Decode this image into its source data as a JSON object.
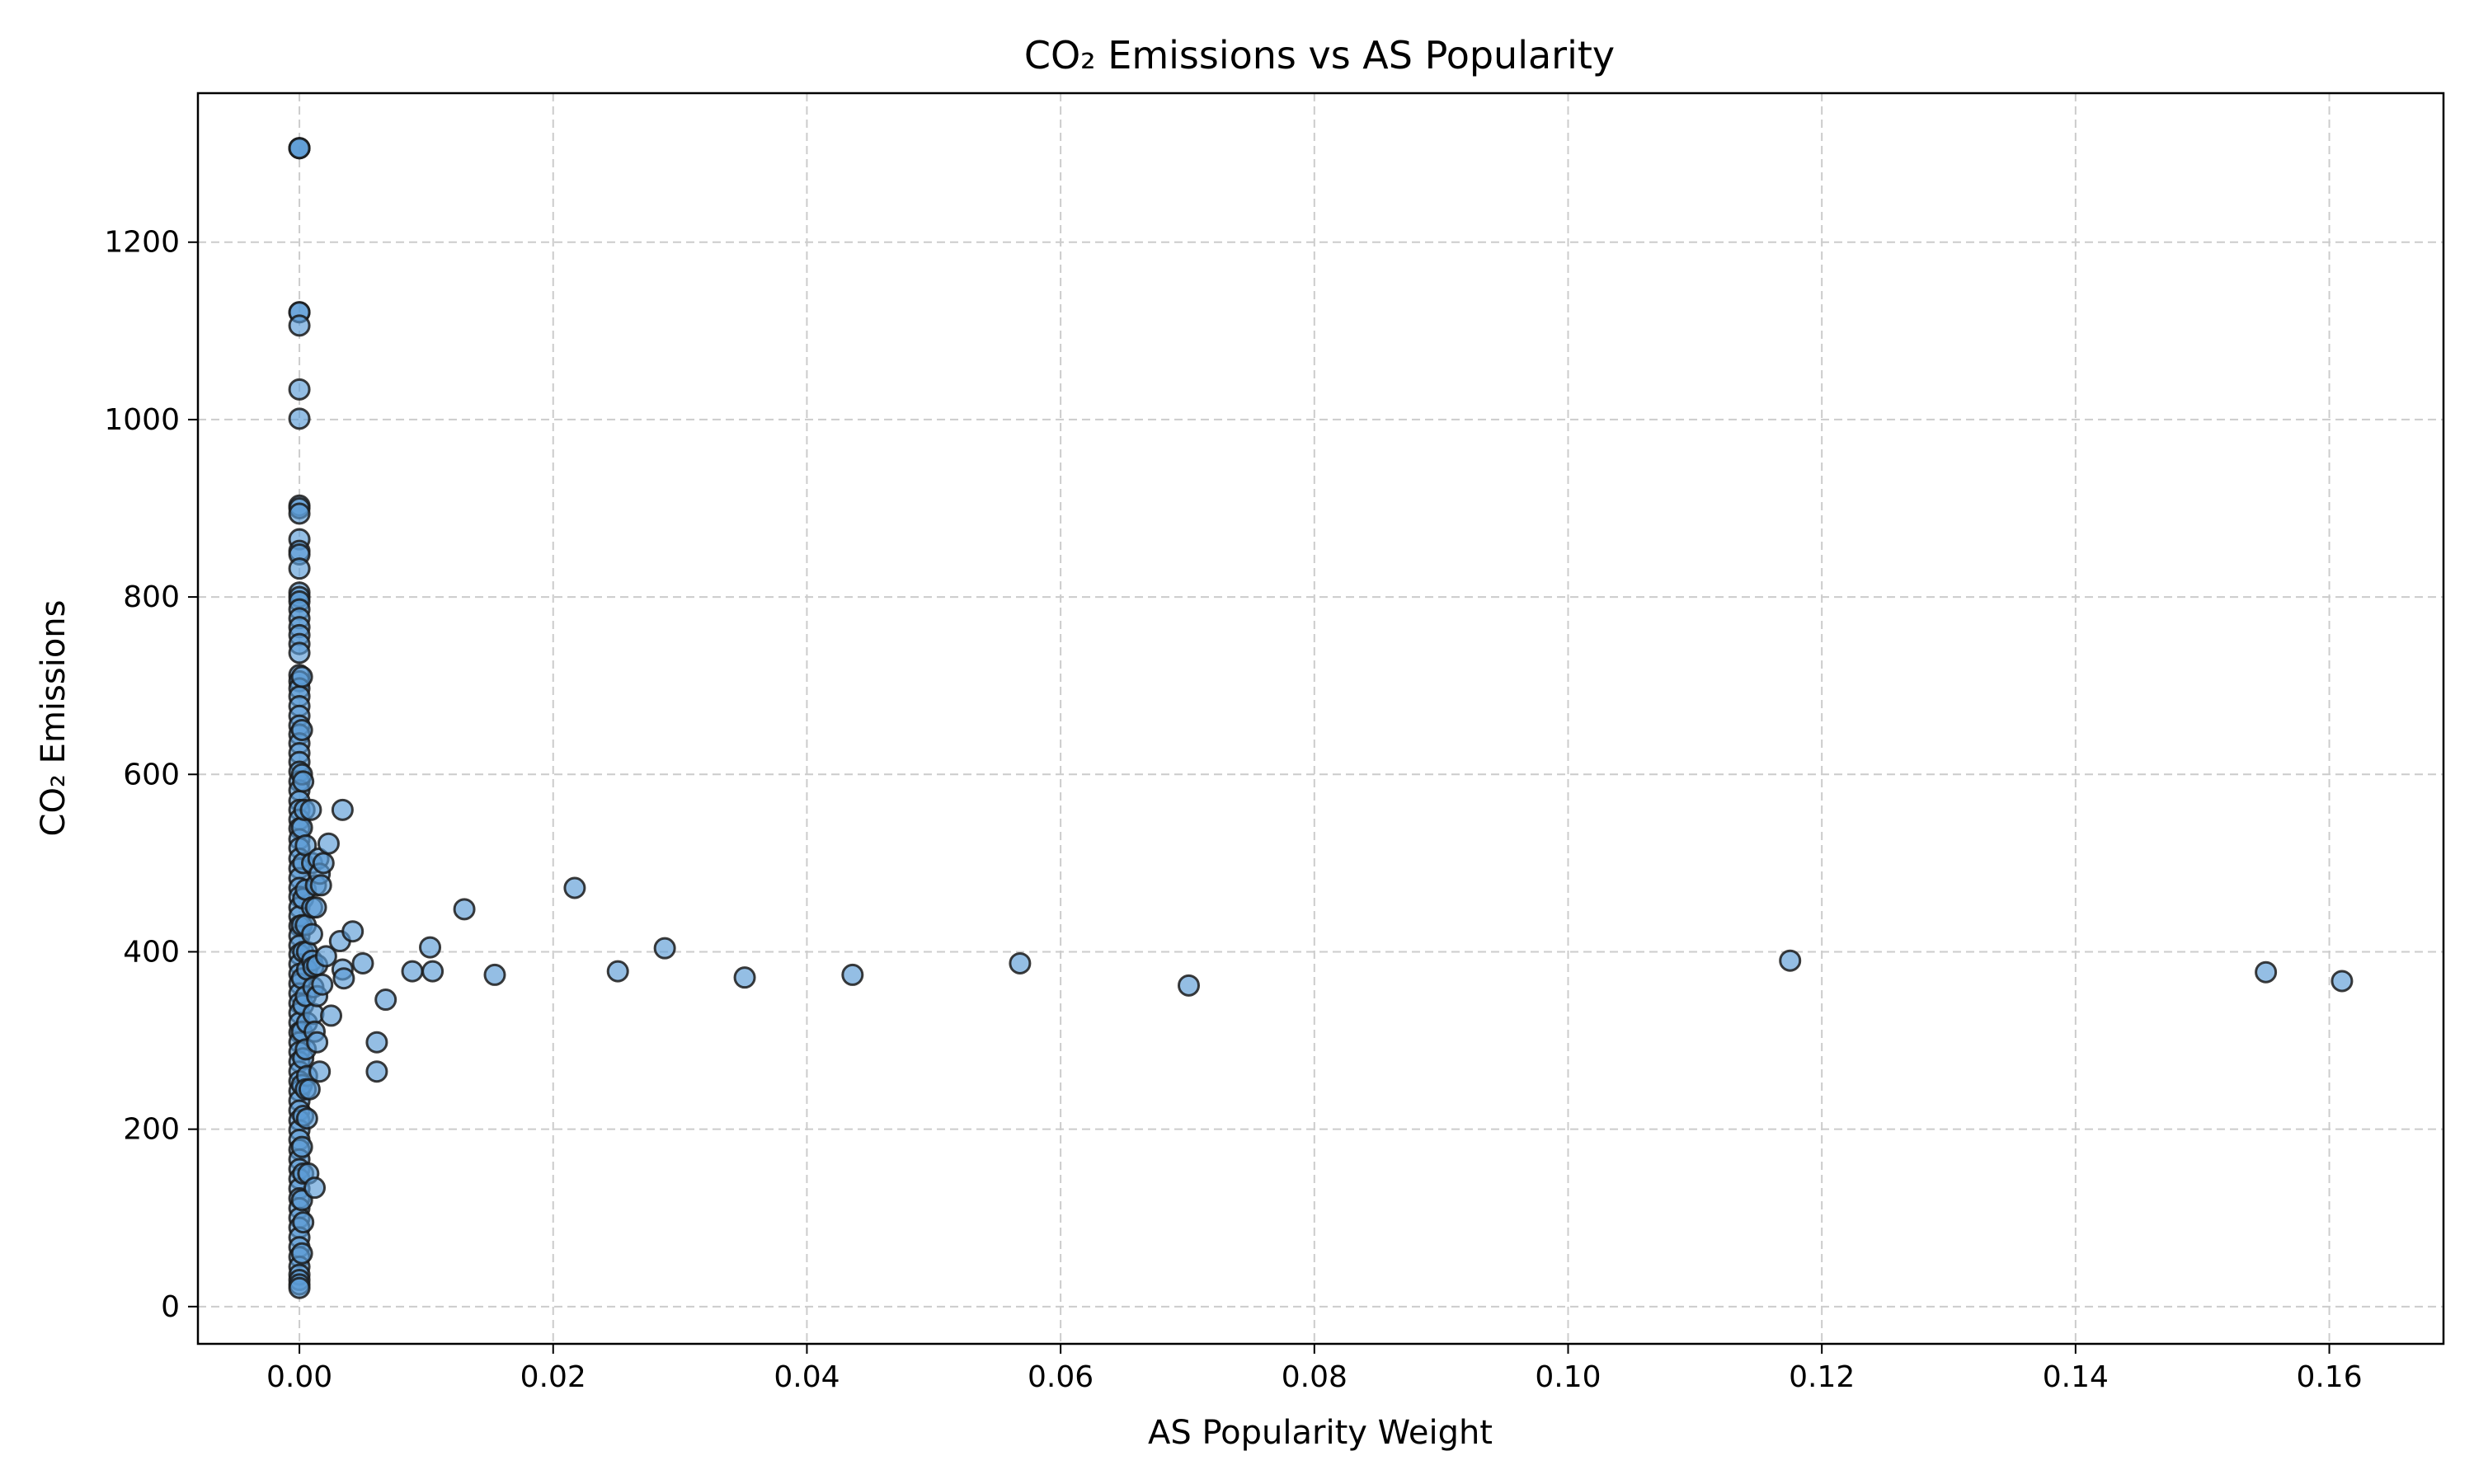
{
  "chart_data": {
    "type": "scatter",
    "title": "CO₂ Emissions vs AS Popularity",
    "xlabel": "AS Popularity Weight",
    "ylabel": "CO₂ Emissions",
    "xlim": [
      -0.008,
      0.169
    ],
    "ylim": [
      -42,
      1368
    ],
    "xticks": [
      0.0,
      0.02,
      0.04,
      0.06,
      0.08,
      0.1,
      0.12,
      0.14,
      0.16
    ],
    "xtick_labels": [
      "0.00",
      "0.02",
      "0.04",
      "0.06",
      "0.08",
      "0.10",
      "0.12",
      "0.14",
      "0.16"
    ],
    "yticks": [
      0,
      200,
      400,
      600,
      800,
      1000,
      1200
    ],
    "ytick_labels": [
      "0",
      "200",
      "400",
      "600",
      "800",
      "1000",
      "1200"
    ],
    "grid": true,
    "grid_style": "dashed",
    "marker_color": "#5b9bd5",
    "marker_edge_color": "#1a1a1a",
    "marker_alpha": 0.65,
    "series": [
      {
        "points": [
          [
            0.0,
            1306
          ],
          [
            0.0,
            1306
          ],
          [
            0.0,
            1306
          ],
          [
            0.0,
            1121
          ],
          [
            0.0,
            1121
          ],
          [
            0.0,
            1106
          ],
          [
            0.0,
            1034
          ],
          [
            0.0,
            1001
          ],
          [
            0.0,
            903
          ],
          [
            0.0,
            900
          ],
          [
            0.0,
            894
          ],
          [
            0.0,
            865
          ],
          [
            0.0,
            852
          ],
          [
            0.0,
            848
          ],
          [
            0.0,
            832
          ],
          [
            0.0,
            805
          ],
          [
            0.0,
            800
          ],
          [
            0.0,
            795
          ],
          [
            0.0,
            786
          ],
          [
            0.0,
            776
          ],
          [
            0.0,
            766
          ],
          [
            0.0,
            757
          ],
          [
            0.0,
            747
          ],
          [
            0.0,
            737
          ],
          [
            0.0,
            712
          ],
          [
            0.0,
            705
          ],
          [
            0.0,
            697
          ],
          [
            0.0,
            688
          ],
          [
            0.0,
            677
          ],
          [
            0.0,
            666
          ],
          [
            0.0,
            655
          ],
          [
            0.0,
            645
          ],
          [
            0.0,
            635
          ],
          [
            0.0,
            624
          ],
          [
            0.0,
            614
          ],
          [
            0.0,
            603
          ],
          [
            0.0,
            592
          ],
          [
            0.0,
            582
          ],
          [
            0.0,
            570
          ],
          [
            0.0,
            560
          ],
          [
            0.0,
            549
          ],
          [
            0.0,
            539
          ],
          [
            0.0,
            527
          ],
          [
            0.0,
            517
          ],
          [
            0.0,
            505
          ],
          [
            0.0,
            494
          ],
          [
            0.0,
            483
          ],
          [
            0.0,
            472
          ],
          [
            0.0,
            462
          ],
          [
            0.0,
            450
          ],
          [
            0.0,
            440
          ],
          [
            0.0,
            429
          ],
          [
            0.0,
            418
          ],
          [
            0.0,
            407
          ],
          [
            0.0,
            397
          ],
          [
            0.0,
            386
          ],
          [
            0.0,
            375
          ],
          [
            0.0,
            364
          ],
          [
            0.0,
            353
          ],
          [
            0.0,
            342
          ],
          [
            0.0,
            331
          ],
          [
            0.0,
            320
          ],
          [
            0.0,
            309
          ],
          [
            0.0,
            298
          ],
          [
            0.0,
            287
          ],
          [
            0.0,
            276
          ],
          [
            0.0,
            265
          ],
          [
            0.0,
            254
          ],
          [
            0.0,
            243
          ],
          [
            0.0,
            232
          ],
          [
            0.0,
            221
          ],
          [
            0.0,
            210
          ],
          [
            0.0,
            199
          ],
          [
            0.0,
            188
          ],
          [
            0.0,
            177
          ],
          [
            0.0,
            166
          ],
          [
            0.0,
            155
          ],
          [
            0.0,
            144
          ],
          [
            0.0,
            133
          ],
          [
            0.0,
            122
          ],
          [
            0.0,
            111
          ],
          [
            0.0,
            100
          ],
          [
            0.0,
            89
          ],
          [
            0.0,
            78
          ],
          [
            0.0,
            67
          ],
          [
            0.0,
            56
          ],
          [
            0.0,
            45
          ],
          [
            0.0,
            36
          ],
          [
            0.0,
            30
          ],
          [
            0.0,
            25
          ],
          [
            0.0,
            21
          ],
          [
            0.0002,
            710
          ],
          [
            0.0002,
            650
          ],
          [
            0.0002,
            600
          ],
          [
            0.0003,
            592
          ],
          [
            0.0002,
            540
          ],
          [
            0.0003,
            500
          ],
          [
            0.0003,
            460
          ],
          [
            0.0002,
            430
          ],
          [
            0.0003,
            400
          ],
          [
            0.0002,
            370
          ],
          [
            0.0003,
            340
          ],
          [
            0.0002,
            310
          ],
          [
            0.0003,
            280
          ],
          [
            0.0002,
            250
          ],
          [
            0.0003,
            215
          ],
          [
            0.0002,
            180
          ],
          [
            0.0003,
            150
          ],
          [
            0.0002,
            120
          ],
          [
            0.0003,
            95
          ],
          [
            0.0002,
            60
          ],
          [
            0.0004,
            560
          ],
          [
            0.0005,
            520
          ],
          [
            0.0005,
            470
          ],
          [
            0.0005,
            430
          ],
          [
            0.0006,
            400
          ],
          [
            0.0006,
            380
          ],
          [
            0.0005,
            350
          ],
          [
            0.0006,
            320
          ],
          [
            0.0005,
            290
          ],
          [
            0.0006,
            260
          ],
          [
            0.0005,
            245
          ],
          [
            0.0006,
            212
          ],
          [
            0.0007,
            150
          ],
          [
            0.0008,
            245
          ],
          [
            0.0009,
            560
          ],
          [
            0.001,
            500
          ],
          [
            0.001,
            450
          ],
          [
            0.001,
            420
          ],
          [
            0.001,
            390
          ],
          [
            0.0011,
            383
          ],
          [
            0.0011,
            360
          ],
          [
            0.0011,
            330
          ],
          [
            0.0012,
            310
          ],
          [
            0.0012,
            134
          ],
          [
            0.0013,
            475
          ],
          [
            0.0013,
            450
          ],
          [
            0.0014,
            385
          ],
          [
            0.0014,
            350
          ],
          [
            0.0014,
            298
          ],
          [
            0.0015,
            505
          ],
          [
            0.0016,
            488
          ],
          [
            0.0017,
            475
          ],
          [
            0.0016,
            265
          ],
          [
            0.0018,
            363
          ],
          [
            0.0019,
            500
          ],
          [
            0.0021,
            395
          ],
          [
            0.0023,
            522
          ],
          [
            0.0025,
            328
          ],
          [
            0.0032,
            412
          ],
          [
            0.0034,
            560
          ],
          [
            0.0034,
            380
          ],
          [
            0.0035,
            370
          ],
          [
            0.0042,
            423
          ],
          [
            0.005,
            387
          ],
          [
            0.0061,
            298
          ],
          [
            0.0061,
            265
          ],
          [
            0.0068,
            346
          ],
          [
            0.0089,
            378
          ],
          [
            0.0103,
            405
          ],
          [
            0.0105,
            378
          ],
          [
            0.013,
            448
          ],
          [
            0.0154,
            374
          ],
          [
            0.0217,
            472
          ],
          [
            0.0251,
            378
          ],
          [
            0.0288,
            404
          ],
          [
            0.0351,
            371
          ],
          [
            0.0436,
            374
          ],
          [
            0.0568,
            387
          ],
          [
            0.0701,
            362
          ],
          [
            0.1175,
            390
          ],
          [
            0.155,
            377
          ],
          [
            0.161,
            367
          ]
        ]
      }
    ]
  }
}
